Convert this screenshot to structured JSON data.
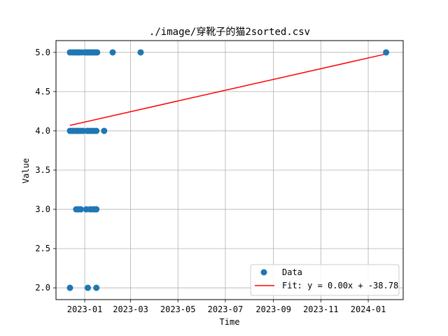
{
  "chart_data": {
    "type": "scatter",
    "title": "./image/穿靴子的猫2sorted.csv",
    "xlabel": "Time",
    "ylabel": "Value",
    "x_axis_type": "date",
    "xlim": [
      "2022-11-25",
      "2024-02-15"
    ],
    "ylim": [
      1.85,
      5.15
    ],
    "x_ticks": [
      "2023-01",
      "2023-03",
      "2023-05",
      "2023-07",
      "2023-09",
      "2023-11",
      "2024-01"
    ],
    "y_ticks": [
      2.0,
      2.5,
      3.0,
      3.5,
      4.0,
      4.5,
      5.0
    ],
    "y_tick_labels": [
      "2.0",
      "2.5",
      "3.0",
      "3.5",
      "4.0",
      "4.5",
      "5.0"
    ],
    "grid": true,
    "legend_position": "lower-right",
    "series": [
      {
        "name": "Data",
        "kind": "scatter",
        "color": "#1f77b4",
        "points": [
          {
            "x": "2022-12-13",
            "y": 5
          },
          {
            "x": "2022-12-16",
            "y": 5
          },
          {
            "x": "2022-12-19",
            "y": 5
          },
          {
            "x": "2022-12-21",
            "y": 5
          },
          {
            "x": "2022-12-23",
            "y": 5
          },
          {
            "x": "2022-12-25",
            "y": 5
          },
          {
            "x": "2022-12-28",
            "y": 5
          },
          {
            "x": "2023-01-01",
            "y": 5
          },
          {
            "x": "2023-01-03",
            "y": 5
          },
          {
            "x": "2023-01-05",
            "y": 5
          },
          {
            "x": "2023-01-07",
            "y": 5
          },
          {
            "x": "2023-01-09",
            "y": 5
          },
          {
            "x": "2023-01-11",
            "y": 5
          },
          {
            "x": "2023-01-13",
            "y": 5
          },
          {
            "x": "2023-01-15",
            "y": 5
          },
          {
            "x": "2023-01-17",
            "y": 5
          },
          {
            "x": "2023-02-06",
            "y": 5
          },
          {
            "x": "2023-03-14",
            "y": 5
          },
          {
            "x": "2024-01-24",
            "y": 5
          },
          {
            "x": "2022-12-13",
            "y": 4
          },
          {
            "x": "2022-12-16",
            "y": 4
          },
          {
            "x": "2022-12-19",
            "y": 4
          },
          {
            "x": "2022-12-22",
            "y": 4
          },
          {
            "x": "2022-12-24",
            "y": 4
          },
          {
            "x": "2022-12-27",
            "y": 4
          },
          {
            "x": "2022-12-30",
            "y": 4
          },
          {
            "x": "2023-01-04",
            "y": 4
          },
          {
            "x": "2023-01-07",
            "y": 4
          },
          {
            "x": "2023-01-10",
            "y": 4
          },
          {
            "x": "2023-01-13",
            "y": 4
          },
          {
            "x": "2023-01-16",
            "y": 4
          },
          {
            "x": "2023-01-26",
            "y": 4
          },
          {
            "x": "2022-12-21",
            "y": 3
          },
          {
            "x": "2022-12-24",
            "y": 3
          },
          {
            "x": "2022-12-27",
            "y": 3
          },
          {
            "x": "2023-01-03",
            "y": 3
          },
          {
            "x": "2023-01-08",
            "y": 3
          },
          {
            "x": "2023-01-11",
            "y": 3
          },
          {
            "x": "2023-01-14",
            "y": 3
          },
          {
            "x": "2023-01-16",
            "y": 3
          },
          {
            "x": "2022-12-13",
            "y": 2
          },
          {
            "x": "2023-01-05",
            "y": 2
          },
          {
            "x": "2023-01-16",
            "y": 2
          }
        ]
      },
      {
        "name": "Fit: y = 0.00x + -38.78",
        "kind": "line",
        "color": "#ff0000",
        "points": [
          {
            "x": "2022-12-13",
            "y": 4.07
          },
          {
            "x": "2024-01-24",
            "y": 4.98
          }
        ]
      }
    ]
  }
}
